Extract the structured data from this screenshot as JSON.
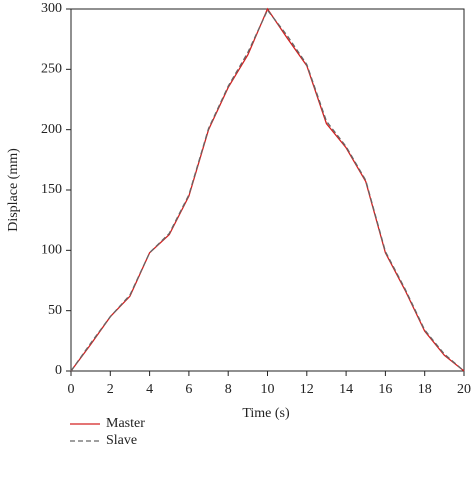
{
  "chart_data": {
    "type": "line",
    "x_label": "Time (s)",
    "y_label": "Displace (mm)",
    "x": [
      0,
      1,
      2,
      3,
      4,
      5,
      6,
      7,
      8,
      9,
      10,
      11,
      12,
      13,
      14,
      15,
      16,
      17,
      18,
      19,
      20
    ],
    "series": [
      {
        "name": "Master",
        "color": "#d42020",
        "dash": false,
        "values": [
          0,
          22,
          45,
          62,
          98,
          113,
          145,
          200,
          235,
          262,
          300,
          276,
          253,
          205,
          185,
          157,
          98,
          67,
          33,
          13,
          0
        ]
      },
      {
        "name": "Slave",
        "color": "#666666",
        "dash": true,
        "values": [
          0,
          23,
          45,
          63,
          98,
          114,
          146,
          201,
          236,
          264,
          299,
          278,
          254,
          207,
          186,
          158,
          99,
          68,
          34,
          14,
          0
        ]
      }
    ],
    "xlim": [
      0,
      20
    ],
    "xticks": [
      0,
      2,
      4,
      6,
      8,
      10,
      12,
      14,
      16,
      18,
      20
    ],
    "ylim": [
      0,
      300
    ],
    "yticks": [
      0,
      50,
      100,
      150,
      200,
      250,
      300
    ]
  }
}
